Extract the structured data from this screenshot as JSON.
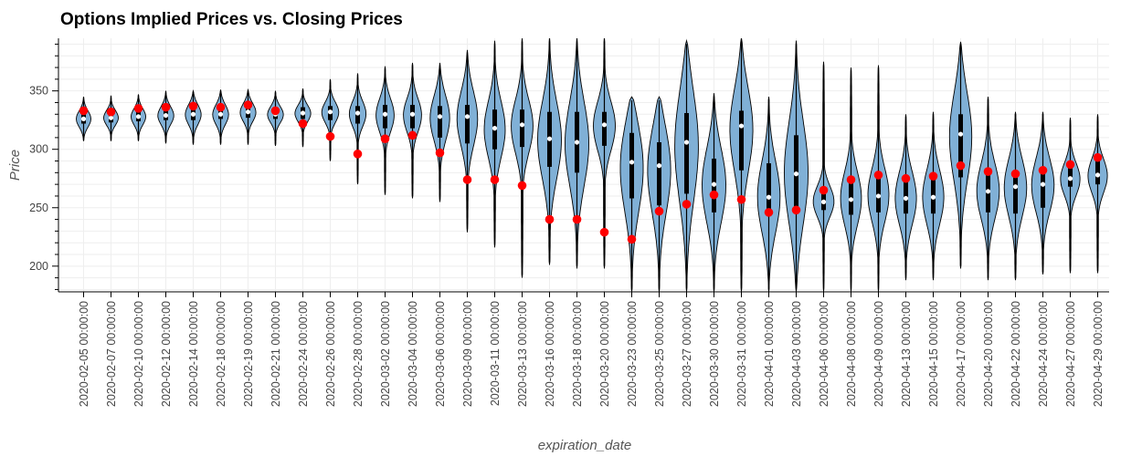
{
  "chart_data": {
    "type": "violin",
    "title": "Options Implied Prices vs. Closing Prices",
    "xlabel": "expiration_date",
    "ylabel": "Price",
    "ylim": [
      178,
      395
    ],
    "yticks": [
      200,
      250,
      300,
      350
    ],
    "grid": true,
    "colors": {
      "violin_fill": "#80b0d6",
      "violin_stroke": "#000000",
      "closing_marker": "#ff0000",
      "median_marker": "#ffffff",
      "box": "#000000"
    },
    "categories": [
      {
        "date": "2020-02-05 00:00:00",
        "median": 326,
        "q1": 322,
        "q3": 332,
        "wlo": 308,
        "whi": 343,
        "close": 333,
        "min": 307,
        "max": 345,
        "w": 0.55
      },
      {
        "date": "2020-02-07 00:00:00",
        "median": 327,
        "q1": 323,
        "q3": 332,
        "wlo": 308,
        "whi": 344,
        "close": 332,
        "min": 307,
        "max": 346,
        "w": 0.55
      },
      {
        "date": "2020-02-10 00:00:00",
        "median": 328,
        "q1": 324,
        "q3": 334,
        "wlo": 308,
        "whi": 346,
        "close": 335,
        "min": 307,
        "max": 347,
        "w": 0.55
      },
      {
        "date": "2020-02-12 00:00:00",
        "median": 329,
        "q1": 325,
        "q3": 336,
        "wlo": 306,
        "whi": 348,
        "close": 336,
        "min": 305,
        "max": 350,
        "w": 0.6
      },
      {
        "date": "2020-02-14 00:00:00",
        "median": 330,
        "q1": 325,
        "q3": 337,
        "wlo": 305,
        "whi": 349,
        "close": 337,
        "min": 304,
        "max": 350,
        "w": 0.6
      },
      {
        "date": "2020-02-18 00:00:00",
        "median": 330,
        "q1": 326,
        "q3": 338,
        "wlo": 305,
        "whi": 350,
        "close": 336,
        "min": 304,
        "max": 351,
        "w": 0.6
      },
      {
        "date": "2020-02-19 00:00:00",
        "median": 332,
        "q1": 327,
        "q3": 338,
        "wlo": 305,
        "whi": 350,
        "close": 338,
        "min": 304,
        "max": 351,
        "w": 0.6
      },
      {
        "date": "2020-02-21 00:00:00",
        "median": 330,
        "q1": 326,
        "q3": 336,
        "wlo": 304,
        "whi": 349,
        "close": 333,
        "min": 303,
        "max": 350,
        "w": 0.6
      },
      {
        "date": "2020-02-24 00:00:00",
        "median": 331,
        "q1": 326,
        "q3": 336,
        "wlo": 303,
        "whi": 351,
        "close": 322,
        "min": 302,
        "max": 352,
        "w": 0.6
      },
      {
        "date": "2020-02-26 00:00:00",
        "median": 332,
        "q1": 325,
        "q3": 337,
        "wlo": 292,
        "whi": 358,
        "close": 311,
        "min": 290,
        "max": 360,
        "w": 0.65
      },
      {
        "date": "2020-02-28 00:00:00",
        "median": 331,
        "q1": 322,
        "q3": 337,
        "wlo": 272,
        "whi": 362,
        "close": 296,
        "min": 270,
        "max": 365,
        "w": 0.65
      },
      {
        "date": "2020-03-02 00:00:00",
        "median": 330,
        "q1": 318,
        "q3": 338,
        "wlo": 263,
        "whi": 369,
        "close": 309,
        "min": 261,
        "max": 371,
        "w": 0.7
      },
      {
        "date": "2020-03-04 00:00:00",
        "median": 330,
        "q1": 318,
        "q3": 338,
        "wlo": 260,
        "whi": 372,
        "close": 312,
        "min": 258,
        "max": 374,
        "w": 0.7
      },
      {
        "date": "2020-03-06 00:00:00",
        "median": 328,
        "q1": 310,
        "q3": 337,
        "wlo": 257,
        "whi": 372,
        "close": 297,
        "min": 255,
        "max": 374,
        "w": 0.75
      },
      {
        "date": "2020-03-09 00:00:00",
        "median": 328,
        "q1": 305,
        "q3": 338,
        "wlo": 232,
        "whi": 383,
        "close": 274,
        "min": 229,
        "max": 385,
        "w": 0.8
      },
      {
        "date": "2020-03-11 00:00:00",
        "median": 318,
        "q1": 300,
        "q3": 334,
        "wlo": 218,
        "whi": 390,
        "close": 274,
        "min": 216,
        "max": 393,
        "w": 0.8
      },
      {
        "date": "2020-03-13 00:00:00",
        "median": 321,
        "q1": 302,
        "q3": 334,
        "wlo": 192,
        "whi": 392,
        "close": 269,
        "min": 190,
        "max": 395,
        "w": 0.85
      },
      {
        "date": "2020-03-16 00:00:00",
        "median": 309,
        "q1": 285,
        "q3": 332,
        "wlo": 203,
        "whi": 395,
        "close": 240,
        "min": 201,
        "max": 395,
        "w": 0.9
      },
      {
        "date": "2020-03-18 00:00:00",
        "median": 306,
        "q1": 280,
        "q3": 332,
        "wlo": 200,
        "whi": 395,
        "close": 240,
        "min": 198,
        "max": 395,
        "w": 0.9
      },
      {
        "date": "2020-03-20 00:00:00",
        "median": 321,
        "q1": 303,
        "q3": 332,
        "wlo": 200,
        "whi": 395,
        "close": 229,
        "min": 198,
        "max": 395,
        "w": 0.85
      },
      {
        "date": "2020-03-23 00:00:00",
        "median": 289,
        "q1": 258,
        "q3": 314,
        "wlo": 180,
        "whi": 342,
        "close": 223,
        "min": 178,
        "max": 345,
        "w": 0.9
      },
      {
        "date": "2020-03-25 00:00:00",
        "median": 286,
        "q1": 252,
        "q3": 306,
        "wlo": 180,
        "whi": 342,
        "close": 247,
        "min": 178,
        "max": 345,
        "w": 0.9
      },
      {
        "date": "2020-03-27 00:00:00",
        "median": 306,
        "q1": 262,
        "q3": 331,
        "wlo": 180,
        "whi": 390,
        "close": 253,
        "min": 178,
        "max": 393,
        "w": 0.9
      },
      {
        "date": "2020-03-30 00:00:00",
        "median": 270,
        "q1": 246,
        "q3": 292,
        "wlo": 180,
        "whi": 345,
        "close": 261,
        "min": 178,
        "max": 348,
        "w": 0.9
      },
      {
        "date": "2020-03-31 00:00:00",
        "median": 320,
        "q1": 282,
        "q3": 333,
        "wlo": 180,
        "whi": 395,
        "close": 257,
        "min": 178,
        "max": 395,
        "w": 0.9
      },
      {
        "date": "2020-04-01 00:00:00",
        "median": 259,
        "q1": 244,
        "q3": 288,
        "wlo": 180,
        "whi": 342,
        "close": 246,
        "min": 178,
        "max": 345,
        "w": 0.85
      },
      {
        "date": "2020-04-03 00:00:00",
        "median": 279,
        "q1": 249,
        "q3": 312,
        "wlo": 180,
        "whi": 390,
        "close": 248,
        "min": 178,
        "max": 393,
        "w": 0.9
      },
      {
        "date": "2020-04-06 00:00:00",
        "median": 255,
        "q1": 248,
        "q3": 266,
        "wlo": 180,
        "whi": 372,
        "close": 265,
        "min": 178,
        "max": 375,
        "w": 0.8
      },
      {
        "date": "2020-04-08 00:00:00",
        "median": 257,
        "q1": 244,
        "q3": 276,
        "wlo": 180,
        "whi": 368,
        "close": 274,
        "min": 178,
        "max": 370,
        "w": 0.8
      },
      {
        "date": "2020-04-09 00:00:00",
        "median": 260,
        "q1": 246,
        "q3": 278,
        "wlo": 180,
        "whi": 370,
        "close": 278,
        "min": 178,
        "max": 372,
        "w": 0.8
      },
      {
        "date": "2020-04-13 00:00:00",
        "median": 258,
        "q1": 245,
        "q3": 277,
        "wlo": 190,
        "whi": 328,
        "close": 275,
        "min": 188,
        "max": 330,
        "w": 0.8
      },
      {
        "date": "2020-04-15 00:00:00",
        "median": 259,
        "q1": 245,
        "q3": 278,
        "wlo": 190,
        "whi": 330,
        "close": 277,
        "min": 188,
        "max": 332,
        "w": 0.8
      },
      {
        "date": "2020-04-17 00:00:00",
        "median": 313,
        "q1": 276,
        "q3": 330,
        "wlo": 200,
        "whi": 390,
        "close": 286,
        "min": 198,
        "max": 392,
        "w": 0.85
      },
      {
        "date": "2020-04-20 00:00:00",
        "median": 264,
        "q1": 246,
        "q3": 280,
        "wlo": 190,
        "whi": 342,
        "close": 281,
        "min": 188,
        "max": 345,
        "w": 0.85
      },
      {
        "date": "2020-04-22 00:00:00",
        "median": 268,
        "q1": 245,
        "q3": 280,
        "wlo": 190,
        "whi": 330,
        "close": 279,
        "min": 188,
        "max": 332,
        "w": 0.85
      },
      {
        "date": "2020-04-24 00:00:00",
        "median": 270,
        "q1": 250,
        "q3": 283,
        "wlo": 195,
        "whi": 330,
        "close": 282,
        "min": 193,
        "max": 332,
        "w": 0.85
      },
      {
        "date": "2020-04-27 00:00:00",
        "median": 275,
        "q1": 268,
        "q3": 287,
        "wlo": 196,
        "whi": 325,
        "close": 287,
        "min": 194,
        "max": 327,
        "w": 0.75
      },
      {
        "date": "2020-04-29 00:00:00",
        "median": 278,
        "q1": 270,
        "q3": 290,
        "wlo": 196,
        "whi": 328,
        "close": 293,
        "min": 194,
        "max": 330,
        "w": 0.75
      }
    ]
  }
}
